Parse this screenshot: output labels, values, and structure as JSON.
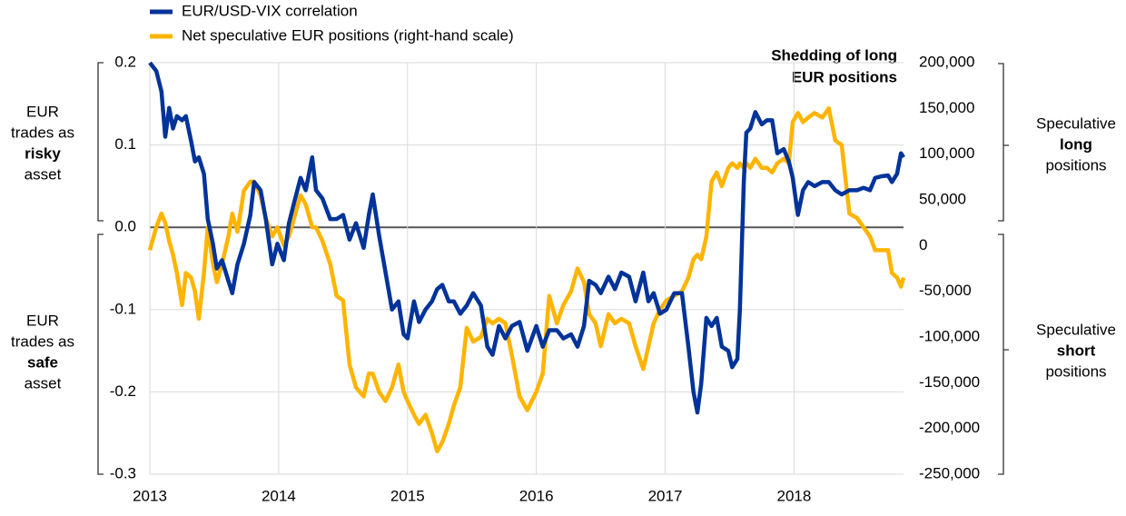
{
  "chart_data": {
    "type": "line",
    "x": [
      2013.0,
      2013.05,
      2013.09,
      2013.12,
      2013.15,
      2013.18,
      2013.21,
      2013.25,
      2013.28,
      2013.32,
      2013.35,
      2013.38,
      2013.42,
      2013.45,
      2013.49,
      2013.52,
      2013.56,
      2013.61,
      2013.64,
      2013.68,
      2013.73,
      2013.78,
      2013.81,
      2013.86,
      2013.9,
      2013.95,
      2013.99,
      2014.04,
      2014.08,
      2014.12,
      2014.17,
      2014.21,
      2014.26,
      2014.29,
      2014.34,
      2014.4,
      2014.45,
      2014.5,
      2014.55,
      2014.6,
      2014.66,
      2014.7,
      2014.73,
      2014.78,
      2014.83,
      2014.88,
      2014.93,
      2014.97,
      2015.0,
      2015.05,
      2015.09,
      2015.14,
      2015.19,
      2015.23,
      2015.27,
      2015.32,
      2015.36,
      2015.41,
      2015.46,
      2015.51,
      2015.57,
      2015.62,
      2015.66,
      2015.71,
      2015.76,
      2015.81,
      2015.87,
      2015.93,
      2016.0,
      2016.05,
      2016.1,
      2016.16,
      2016.21,
      2016.27,
      2016.32,
      2016.37,
      2016.41,
      2016.46,
      2016.5,
      2016.56,
      2016.61,
      2016.66,
      2016.72,
      2016.77,
      2016.83,
      2016.87,
      2016.91,
      2016.96,
      2017.01,
      2017.07,
      2017.13,
      2017.18,
      2017.22,
      2017.25,
      2017.28,
      2017.32,
      2017.36,
      2017.4,
      2017.44,
      2017.49,
      2017.52,
      2017.56,
      2017.58,
      2017.61,
      2017.63,
      2017.66,
      2017.7,
      2017.75,
      2017.79,
      2017.83,
      2017.87,
      2017.92,
      2017.96,
      2017.99,
      2018.03,
      2018.07,
      2018.11,
      2018.16,
      2018.22,
      2018.27,
      2018.32,
      2018.37,
      2018.43,
      2018.49,
      2018.54,
      2018.59,
      2018.63,
      2018.68,
      2018.73,
      2018.76,
      2018.8,
      2018.83,
      2018.85
    ],
    "series": [
      {
        "name": "EUR/USD-VIX correlation",
        "color": "#003399",
        "axis": "y",
        "values": [
          0.2,
          0.19,
          0.165,
          0.11,
          0.145,
          0.12,
          0.135,
          0.13,
          0.135,
          0.105,
          0.08,
          0.085,
          0.065,
          0.01,
          -0.02,
          -0.05,
          -0.04,
          -0.065,
          -0.08,
          -0.045,
          -0.02,
          0.015,
          0.055,
          0.045,
          0.01,
          -0.045,
          -0.02,
          -0.04,
          0.005,
          0.03,
          0.06,
          0.045,
          0.085,
          0.045,
          0.035,
          0.01,
          0.01,
          0.015,
          -0.015,
          0.005,
          -0.025,
          0.015,
          0.04,
          -0.01,
          -0.055,
          -0.1,
          -0.09,
          -0.13,
          -0.135,
          -0.09,
          -0.115,
          -0.1,
          -0.09,
          -0.075,
          -0.07,
          -0.09,
          -0.09,
          -0.105,
          -0.095,
          -0.08,
          -0.095,
          -0.145,
          -0.155,
          -0.12,
          -0.135,
          -0.12,
          -0.115,
          -0.15,
          -0.12,
          -0.145,
          -0.125,
          -0.125,
          -0.135,
          -0.13,
          -0.145,
          -0.12,
          -0.065,
          -0.07,
          -0.08,
          -0.06,
          -0.075,
          -0.055,
          -0.06,
          -0.09,
          -0.055,
          -0.09,
          -0.08,
          -0.105,
          -0.1,
          -0.08,
          -0.08,
          -0.145,
          -0.2,
          -0.225,
          -0.19,
          -0.11,
          -0.12,
          -0.11,
          -0.145,
          -0.15,
          -0.17,
          -0.16,
          -0.1,
          0.055,
          0.115,
          0.12,
          0.14,
          0.125,
          0.13,
          0.13,
          0.09,
          0.095,
          0.08,
          0.06,
          0.015,
          0.045,
          0.055,
          0.05,
          0.055,
          0.055,
          0.045,
          0.04,
          0.045,
          0.045,
          0.048,
          0.045,
          0.06,
          0.062,
          0.063,
          0.055,
          0.065,
          0.09,
          0.085
        ]
      },
      {
        "name": "Net speculative EUR positions (right-hand scale)",
        "color": "#ffb400",
        "axis": "y2",
        "values": [
          -5000,
          20000,
          35000,
          25000,
          5000,
          -10000,
          -30000,
          -65000,
          -30000,
          -35000,
          -50000,
          -80000,
          -30000,
          20000,
          -20000,
          -40000,
          -20000,
          10000,
          35000,
          15000,
          60000,
          70000,
          70000,
          55000,
          30000,
          10000,
          20000,
          0,
          10000,
          30000,
          55000,
          45000,
          20000,
          20000,
          5000,
          -20000,
          -55000,
          -60000,
          -130000,
          -155000,
          -165000,
          -140000,
          -140000,
          -160000,
          -170000,
          -155000,
          -130000,
          -160000,
          -170000,
          -185000,
          -195000,
          -185000,
          -205000,
          -225000,
          -215000,
          -195000,
          -175000,
          -155000,
          -90000,
          -105000,
          -100000,
          -80000,
          -85000,
          -80000,
          -85000,
          -120000,
          -165000,
          -180000,
          -160000,
          -140000,
          -55000,
          -85000,
          -65000,
          -50000,
          -25000,
          -40000,
          -75000,
          -85000,
          -110000,
          -75000,
          -85000,
          -80000,
          -85000,
          -110000,
          -135000,
          -110000,
          -85000,
          -70000,
          -60000,
          -55000,
          -50000,
          -35000,
          -15000,
          -10000,
          -15000,
          10000,
          70000,
          80000,
          65000,
          85000,
          90000,
          85000,
          90000,
          85000,
          90000,
          85000,
          95000,
          85000,
          85000,
          80000,
          90000,
          95000,
          90000,
          135000,
          145000,
          135000,
          140000,
          145000,
          140000,
          150000,
          115000,
          110000,
          35000,
          30000,
          20000,
          10000,
          -5000,
          -5000,
          -5000,
          -30000,
          -35000,
          -45000,
          -35000
        ]
      }
    ],
    "xlim": [
      2013,
      2018.85
    ],
    "xticks": [
      2013,
      2014,
      2015,
      2016,
      2017,
      2018
    ],
    "ylim": [
      -0.3,
      0.2
    ],
    "yticks": [
      0.2,
      0.1,
      {
        "value": 0,
        "label": "0.0"
      },
      -0.1,
      -0.2,
      -0.3
    ],
    "y2lim": [
      -250000,
      200000
    ],
    "y2ticks": [
      {
        "value": 200000,
        "label": "200,000"
      },
      {
        "value": 150000,
        "label": "150,000"
      },
      {
        "value": 100000,
        "label": "100,000"
      },
      {
        "value": 50000,
        "label": "50,000"
      },
      0,
      {
        "value": -50000,
        "label": "-50,000"
      },
      {
        "value": -100000,
        "label": "-100,000"
      },
      {
        "value": -150000,
        "label": "-150,000"
      },
      {
        "value": -200000,
        "label": "-200,000"
      },
      {
        "value": -250000,
        "label": "-250,000"
      }
    ],
    "grid": true,
    "annotation": [
      "Shedding of long",
      "EUR positions"
    ],
    "left_upper_label": [
      "EUR",
      "trades as",
      "risky",
      "asset"
    ],
    "left_lower_label": [
      "EUR",
      "trades as",
      "safe",
      "asset"
    ],
    "right_upper_label": [
      "Speculative",
      "long",
      "positions"
    ],
    "right_lower_label": [
      "Speculative",
      "short",
      "positions"
    ]
  }
}
